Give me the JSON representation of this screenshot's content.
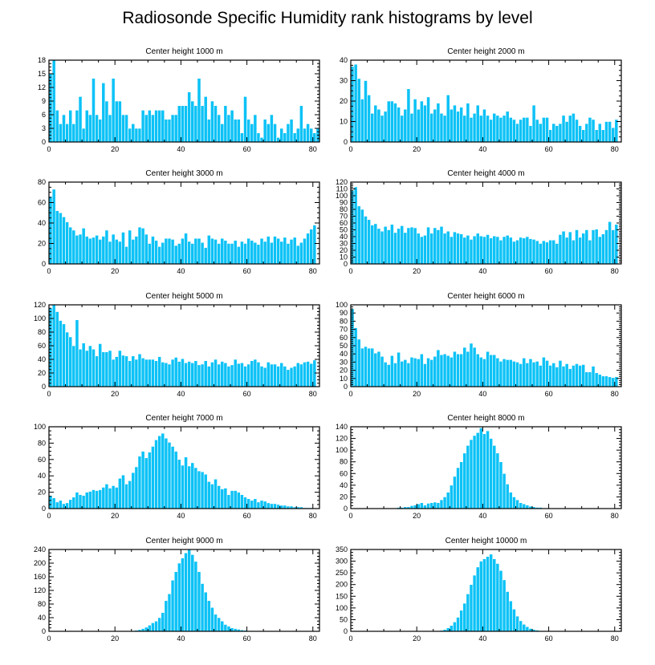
{
  "figure_title": "Radiosonde Specific Humidity rank histograms by level",
  "colors": {
    "bar": "#0cc2f6",
    "bar_edge": "#ffffff",
    "axis": "#000000"
  },
  "chart_data": [
    {
      "type": "bar",
      "title": "Center height 1000 m",
      "xlim": [
        0,
        82
      ],
      "ylim": [
        0,
        18
      ],
      "xticks": [
        0,
        20,
        40,
        60,
        80
      ],
      "yticks": [
        0,
        3,
        6,
        9,
        12,
        15,
        18
      ],
      "values": [
        15,
        18,
        7,
        4,
        6,
        4,
        7,
        4,
        7,
        10,
        3,
        7,
        6,
        14,
        6,
        5,
        13,
        9,
        6,
        14,
        9,
        9,
        6,
        6,
        3,
        4,
        3,
        3,
        7,
        6,
        7,
        6,
        7,
        7,
        7,
        5,
        5,
        6,
        6,
        8,
        8,
        8,
        11,
        9,
        8,
        14,
        8,
        10,
        5,
        9,
        8,
        6,
        4,
        8,
        6,
        7,
        5,
        5,
        2,
        10,
        5,
        4,
        6,
        2,
        1,
        5,
        4,
        6,
        4,
        1,
        3,
        2,
        4,
        5,
        2,
        3,
        8,
        3,
        4,
        3,
        2,
        3
      ]
    },
    {
      "type": "bar",
      "title": "Center height 2000 m",
      "xlim": [
        0,
        82
      ],
      "ylim": [
        0,
        40
      ],
      "xticks": [
        0,
        20,
        40,
        60,
        80
      ],
      "yticks": [
        0,
        10,
        20,
        30,
        40
      ],
      "values": [
        37,
        38,
        31,
        21,
        30,
        23,
        14,
        18,
        16,
        13,
        15,
        20,
        20,
        19,
        17,
        13,
        16,
        26,
        14,
        21,
        16,
        20,
        18,
        22,
        14,
        16,
        19,
        14,
        13,
        23,
        16,
        18,
        15,
        17,
        13,
        19,
        12,
        14,
        18,
        13,
        16,
        13,
        11,
        14,
        13,
        12,
        13,
        15,
        12,
        11,
        9,
        11,
        12,
        12,
        8,
        18,
        11,
        9,
        12,
        12,
        6,
        9,
        8,
        9,
        13,
        10,
        13,
        14,
        11,
        8,
        6,
        9,
        12,
        11,
        6,
        9,
        6,
        10,
        10,
        7,
        11
      ]
    },
    {
      "type": "bar",
      "title": "Center height 3000 m",
      "xlim": [
        0,
        82
      ],
      "ylim": [
        0,
        80
      ],
      "xticks": [
        0,
        20,
        40,
        60,
        80
      ],
      "yticks": [
        0,
        20,
        40,
        60,
        80
      ],
      "values": [
        66,
        73,
        52,
        50,
        46,
        41,
        36,
        33,
        28,
        29,
        35,
        27,
        25,
        26,
        28,
        24,
        27,
        33,
        22,
        29,
        24,
        22,
        31,
        17,
        33,
        24,
        27,
        36,
        35,
        29,
        20,
        27,
        23,
        17,
        21,
        25,
        25,
        24,
        18,
        20,
        25,
        30,
        22,
        20,
        25,
        25,
        21,
        16,
        28,
        25,
        24,
        20,
        25,
        23,
        20,
        20,
        23,
        17,
        22,
        20,
        25,
        23,
        21,
        19,
        25,
        22,
        27,
        21,
        27,
        25,
        22,
        26,
        20,
        24,
        26,
        18,
        21,
        25,
        30,
        34,
        38
      ]
    },
    {
      "type": "bar",
      "title": "Center height 4000 m",
      "xlim": [
        0,
        82
      ],
      "ylim": [
        0,
        120
      ],
      "xticks": [
        0,
        20,
        40,
        60,
        80
      ],
      "yticks": [
        0,
        10,
        20,
        30,
        40,
        50,
        60,
        70,
        80,
        90,
        100,
        110,
        120
      ],
      "values": [
        108,
        113,
        85,
        80,
        70,
        65,
        57,
        59,
        52,
        48,
        55,
        50,
        58,
        46,
        52,
        56,
        46,
        53,
        54,
        53,
        45,
        40,
        42,
        54,
        45,
        53,
        50,
        55,
        45,
        48,
        40,
        47,
        45,
        44,
        39,
        42,
        36,
        41,
        45,
        41,
        40,
        43,
        38,
        41,
        40,
        35,
        40,
        42,
        39,
        33,
        35,
        39,
        38,
        40,
        37,
        36,
        34,
        30,
        34,
        32,
        35,
        35,
        30,
        43,
        48,
        39,
        47,
        35,
        50,
        39,
        45,
        50,
        35,
        50,
        51,
        40,
        44,
        50,
        62,
        50,
        58
      ]
    },
    {
      "type": "bar",
      "title": "Center height 5000 m",
      "xlim": [
        0,
        82
      ],
      "ylim": [
        0,
        120
      ],
      "xticks": [
        0,
        20,
        40,
        60,
        80
      ],
      "yticks": [
        0,
        20,
        40,
        60,
        80,
        100,
        120
      ],
      "values": [
        115,
        120,
        110,
        97,
        92,
        80,
        73,
        60,
        98,
        55,
        64,
        53,
        60,
        55,
        45,
        63,
        51,
        51,
        53,
        40,
        44,
        53,
        46,
        45,
        38,
        45,
        40,
        48,
        42,
        40,
        40,
        40,
        38,
        44,
        36,
        35,
        33,
        40,
        43,
        37,
        41,
        35,
        37,
        35,
        38,
        32,
        33,
        38,
        30,
        36,
        40,
        33,
        37,
        35,
        30,
        32,
        40,
        34,
        35,
        30,
        33,
        38,
        40,
        36,
        30,
        28,
        36,
        33,
        33,
        30,
        35,
        30,
        25,
        28,
        30,
        35,
        33,
        36,
        37,
        34,
        39
      ]
    },
    {
      "type": "bar",
      "title": "Center height 6000 m",
      "xlim": [
        0,
        82
      ],
      "ylim": [
        0,
        100
      ],
      "xticks": [
        0,
        20,
        40,
        60,
        80
      ],
      "yticks": [
        0,
        10,
        20,
        30,
        40,
        50,
        60,
        70,
        80,
        90,
        100
      ],
      "values": [
        95,
        72,
        58,
        47,
        49,
        47,
        47,
        41,
        43,
        37,
        30,
        27,
        38,
        29,
        42,
        31,
        33,
        29,
        36,
        35,
        34,
        40,
        28,
        35,
        33,
        37,
        45,
        39,
        40,
        38,
        36,
        43,
        40,
        40,
        48,
        43,
        53,
        48,
        40,
        36,
        34,
        43,
        39,
        39,
        35,
        31,
        34,
        33,
        33,
        31,
        30,
        28,
        35,
        29,
        34,
        30,
        31,
        26,
        36,
        32,
        26,
        29,
        24,
        32,
        25,
        28,
        22,
        26,
        28,
        26,
        27,
        18,
        18,
        25,
        17,
        15,
        13,
        13,
        12,
        11,
        12
      ]
    },
    {
      "type": "bar",
      "title": "Center height 7000 m",
      "xlim": [
        0,
        82
      ],
      "ylim": [
        0,
        100
      ],
      "xticks": [
        0,
        20,
        40,
        60,
        80
      ],
      "yticks": [
        0,
        20,
        40,
        60,
        80,
        100
      ],
      "values": [
        16,
        13,
        8,
        10,
        6,
        7,
        11,
        14,
        20,
        17,
        16,
        20,
        21,
        23,
        22,
        23,
        26,
        30,
        25,
        28,
        26,
        37,
        41,
        30,
        34,
        44,
        51,
        64,
        70,
        62,
        69,
        76,
        84,
        89,
        92,
        86,
        81,
        76,
        70,
        60,
        53,
        63,
        52,
        56,
        50,
        46,
        45,
        42,
        33,
        30,
        36,
        28,
        24,
        25,
        17,
        22,
        22,
        20,
        17,
        14,
        12,
        10,
        12,
        8,
        10,
        9,
        7,
        6,
        6,
        5,
        4,
        4,
        3,
        3,
        2,
        2,
        2,
        1,
        1,
        1,
        0
      ]
    },
    {
      "type": "bar",
      "title": "Center height 8000 m",
      "xlim": [
        0,
        82
      ],
      "ylim": [
        0,
        140
      ],
      "xticks": [
        0,
        20,
        40,
        60,
        80
      ],
      "yticks": [
        0,
        20,
        40,
        60,
        80,
        100,
        120,
        140
      ],
      "values": [
        0,
        0,
        0,
        0,
        0,
        0,
        0,
        0,
        0,
        0,
        0,
        1,
        0,
        1,
        2,
        2,
        3,
        3,
        5,
        6,
        8,
        10,
        6,
        9,
        10,
        11,
        10,
        15,
        20,
        28,
        40,
        55,
        70,
        80,
        95,
        108,
        118,
        125,
        130,
        138,
        128,
        133,
        120,
        108,
        95,
        80,
        60,
        42,
        28,
        20,
        15,
        10,
        8,
        6,
        4,
        3,
        2,
        2,
        1,
        1,
        1,
        1,
        0,
        0,
        0,
        0,
        0,
        0,
        0,
        0,
        0,
        0,
        0,
        0,
        0,
        0,
        0,
        0,
        0,
        0,
        0
      ]
    },
    {
      "type": "bar",
      "title": "Center height 9000 m",
      "xlim": [
        0,
        82
      ],
      "ylim": [
        0,
        240
      ],
      "xticks": [
        0,
        20,
        40,
        60,
        80
      ],
      "yticks": [
        0,
        40,
        80,
        120,
        160,
        200,
        240
      ],
      "values": [
        0,
        0,
        0,
        0,
        0,
        0,
        0,
        0,
        0,
        0,
        0,
        0,
        0,
        0,
        0,
        0,
        0,
        0,
        0,
        0,
        0,
        0,
        0,
        0,
        0,
        2,
        3,
        5,
        8,
        12,
        18,
        25,
        30,
        40,
        55,
        90,
        110,
        150,
        175,
        200,
        215,
        230,
        240,
        225,
        205,
        175,
        140,
        115,
        90,
        70,
        50,
        40,
        30,
        20,
        15,
        10,
        8,
        6,
        4,
        3,
        2,
        2,
        1,
        1,
        1,
        0,
        0,
        0,
        0,
        0,
        0,
        0,
        0,
        0,
        0,
        0,
        0,
        0,
        0,
        0,
        0
      ]
    },
    {
      "type": "bar",
      "title": "Center height 10000 m",
      "xlim": [
        0,
        82
      ],
      "ylim": [
        0,
        350
      ],
      "xticks": [
        0,
        20,
        40,
        60,
        80
      ],
      "yticks": [
        0,
        50,
        100,
        150,
        200,
        250,
        300,
        350
      ],
      "values": [
        0,
        0,
        0,
        0,
        0,
        0,
        0,
        0,
        0,
        0,
        0,
        0,
        0,
        0,
        0,
        0,
        0,
        0,
        0,
        0,
        0,
        0,
        0,
        0,
        0,
        0,
        2,
        4,
        8,
        15,
        25,
        40,
        60,
        90,
        120,
        160,
        200,
        240,
        275,
        300,
        310,
        320,
        330,
        310,
        290,
        260,
        220,
        170,
        130,
        95,
        65,
        45,
        30,
        20,
        12,
        8,
        5,
        3,
        2,
        1,
        1,
        0,
        0,
        0,
        0,
        0,
        0,
        0,
        0,
        0,
        0,
        0,
        0,
        0,
        0,
        0,
        0,
        0,
        0,
        0,
        0
      ]
    }
  ]
}
